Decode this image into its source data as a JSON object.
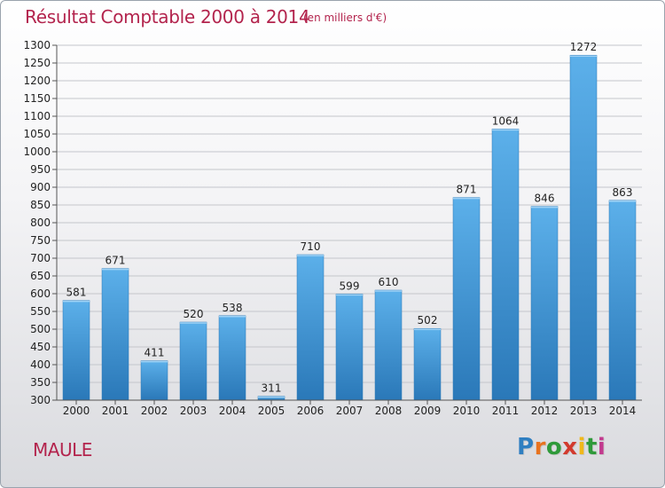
{
  "chart_data": {
    "type": "bar",
    "title": "Résultat Comptable 2000 à 2014",
    "subtitle": "(en milliers d'€)",
    "categories": [
      "2000",
      "2001",
      "2002",
      "2003",
      "2004",
      "2005",
      "2006",
      "2007",
      "2008",
      "2009",
      "2010",
      "2011",
      "2012",
      "2013",
      "2014"
    ],
    "values": [
      581,
      671,
      411,
      520,
      538,
      311,
      710,
      599,
      610,
      502,
      871,
      1064,
      846,
      1272,
      863
    ],
    "ylim": [
      300,
      1300
    ],
    "yticks": [
      300,
      350,
      400,
      450,
      500,
      550,
      600,
      650,
      700,
      750,
      800,
      850,
      900,
      950,
      1000,
      1050,
      1100,
      1150,
      1200,
      1250,
      1300
    ],
    "grid": true,
    "bar_color": "#3d8fd0"
  },
  "footer": {
    "location": "MAULE"
  },
  "logo": {
    "letters": [
      "P",
      "r",
      "o",
      "x",
      "i",
      "t",
      "i"
    ],
    "colors": [
      "#2f7fc1",
      "#e8731f",
      "#2f9a3a",
      "#d23a2e",
      "#f0b81b",
      "#2f9a3a",
      "#c23a8e"
    ]
  }
}
